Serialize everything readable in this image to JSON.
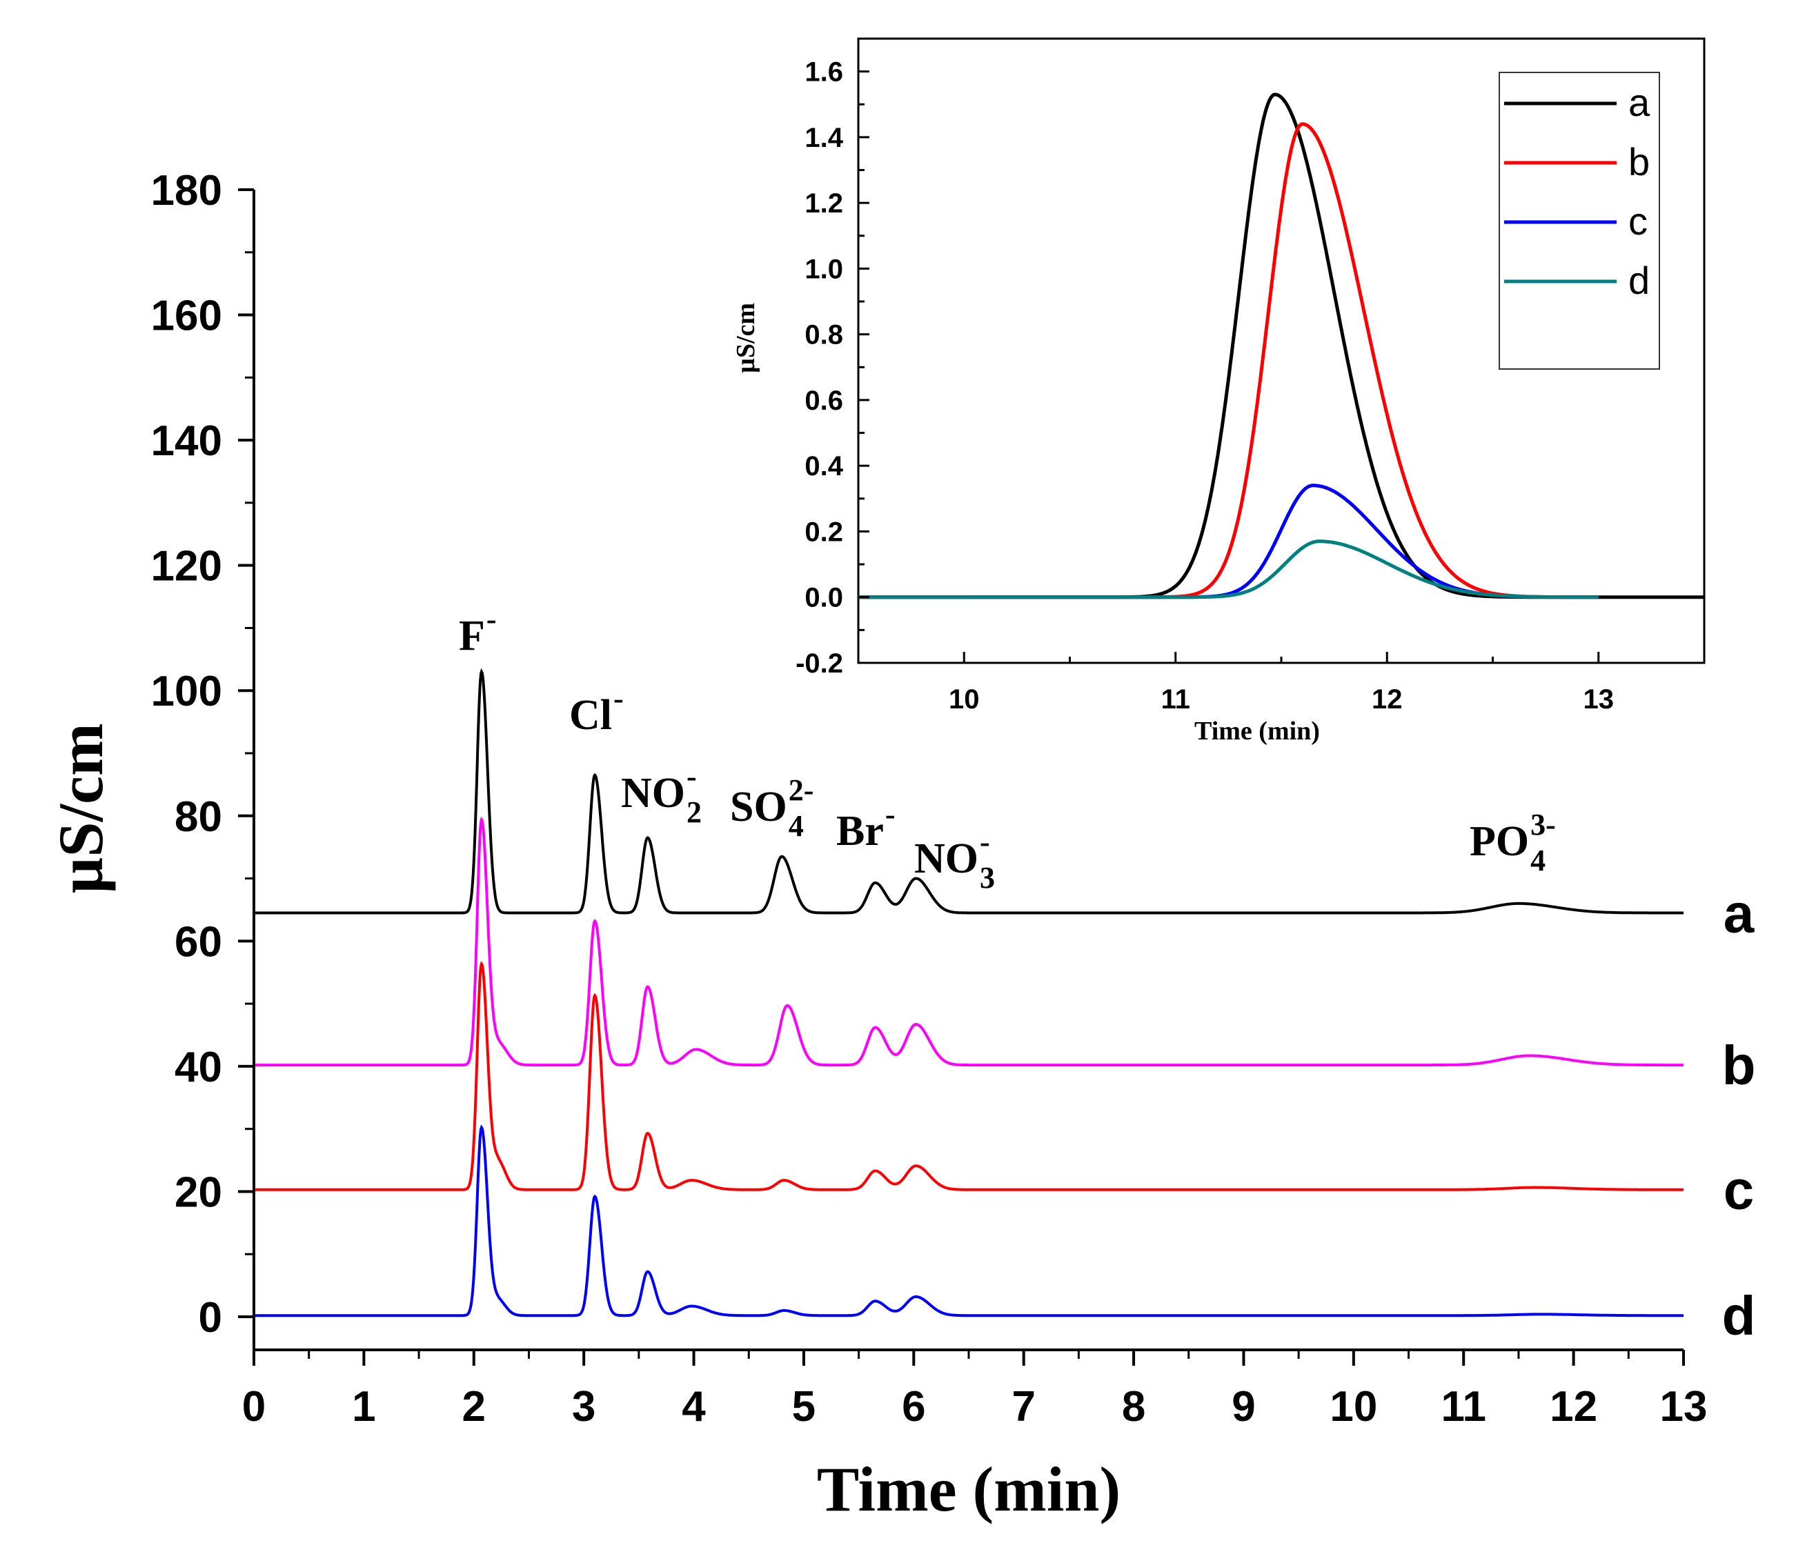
{
  "chart_data": [
    {
      "type": "line",
      "title": "",
      "xlabel": "Time (min)",
      "ylabel": "µS/cm",
      "xlim": [
        0,
        13
      ],
      "ylim": [
        -5,
        185
      ],
      "x_ticks": [
        "0",
        "1",
        "2",
        "3",
        "4",
        "5",
        "6",
        "7",
        "8",
        "9",
        "10",
        "11",
        "12",
        "13"
      ],
      "y_ticks": [
        "0",
        "20",
        "40",
        "60",
        "80",
        "100",
        "120",
        "140",
        "160",
        "180"
      ],
      "grid": false,
      "peak_labels": [
        {
          "id": "F",
          "base": "F",
          "sup": "-",
          "sub": "",
          "time": 2.07
        },
        {
          "id": "Cl",
          "base": "Cl",
          "sup": "-",
          "sub": "",
          "time": 3.1
        },
        {
          "id": "NO2",
          "base": "NO",
          "sup": "-",
          "sub": "2",
          "time": 3.58
        },
        {
          "id": "SO4",
          "base": "SO",
          "sup": "2-",
          "sub": "4",
          "time": 4.8
        },
        {
          "id": "Br",
          "base": "Br",
          "sup": "-",
          "sub": "",
          "time": 5.65
        },
        {
          "id": "NO3",
          "base": "NO",
          "sup": "-",
          "sub": "3",
          "time": 6.02
        },
        {
          "id": "PO4",
          "base": "PO",
          "sup": "3-",
          "sub": "4",
          "time": 11.5
        }
      ],
      "series": [
        {
          "name": "a",
          "label": "a",
          "color": "#000000",
          "baseline": 64.5,
          "peaks": [
            {
              "t": 2.07,
              "h": 38.5,
              "w": 0.04
            },
            {
              "t": 3.1,
              "h": 22.0,
              "w": 0.045
            },
            {
              "t": 3.58,
              "h": 12.0,
              "w": 0.05
            },
            {
              "t": 4.8,
              "h": 9.0,
              "w": 0.07
            },
            {
              "t": 5.65,
              "h": 4.8,
              "w": 0.07
            },
            {
              "t": 6.02,
              "h": 5.5,
              "w": 0.09
            },
            {
              "t": 11.5,
              "h": 1.5,
              "w": 0.25
            }
          ]
        },
        {
          "name": "b",
          "label": "b",
          "color": "#ff00ff",
          "baseline": 40.2,
          "peaks": [
            {
              "t": 2.07,
              "h": 39.0,
              "w": 0.04
            },
            {
              "t": 2.22,
              "h": 3.5,
              "w": 0.06
            },
            {
              "t": 3.1,
              "h": 23.0,
              "w": 0.045
            },
            {
              "t": 3.58,
              "h": 12.5,
              "w": 0.05
            },
            {
              "t": 4.02,
              "h": 2.5,
              "w": 0.1
            },
            {
              "t": 4.85,
              "h": 9.5,
              "w": 0.07
            },
            {
              "t": 5.65,
              "h": 6.0,
              "w": 0.07
            },
            {
              "t": 6.02,
              "h": 6.5,
              "w": 0.09
            },
            {
              "t": 11.6,
              "h": 1.5,
              "w": 0.25
            }
          ]
        },
        {
          "name": "c",
          "label": "c",
          "color": "#ff0000",
          "baseline": 20.3,
          "peaks": [
            {
              "t": 2.07,
              "h": 36.0,
              "w": 0.04
            },
            {
              "t": 2.22,
              "h": 4.5,
              "w": 0.05
            },
            {
              "t": 3.1,
              "h": 31.0,
              "w": 0.045
            },
            {
              "t": 3.58,
              "h": 9.0,
              "w": 0.05
            },
            {
              "t": 3.98,
              "h": 1.5,
              "w": 0.1
            },
            {
              "t": 4.82,
              "h": 1.5,
              "w": 0.07
            },
            {
              "t": 5.65,
              "h": 3.0,
              "w": 0.07
            },
            {
              "t": 6.02,
              "h": 3.8,
              "w": 0.09
            },
            {
              "t": 11.65,
              "h": 0.35,
              "w": 0.25
            }
          ]
        },
        {
          "name": "d",
          "label": "d",
          "color": "#0000ff",
          "baseline": 0.2,
          "peaks": [
            {
              "t": 2.07,
              "h": 30.0,
              "w": 0.04
            },
            {
              "t": 2.22,
              "h": 2.5,
              "w": 0.05
            },
            {
              "t": 3.1,
              "h": 19.0,
              "w": 0.045
            },
            {
              "t": 3.58,
              "h": 7.0,
              "w": 0.05
            },
            {
              "t": 3.98,
              "h": 1.5,
              "w": 0.1
            },
            {
              "t": 4.82,
              "h": 0.8,
              "w": 0.07
            },
            {
              "t": 5.65,
              "h": 2.3,
              "w": 0.07
            },
            {
              "t": 6.02,
              "h": 3.0,
              "w": 0.09
            },
            {
              "t": 11.7,
              "h": 0.2,
              "w": 0.25
            }
          ]
        }
      ]
    },
    {
      "type": "line",
      "title": "",
      "xlabel": "Time (min)",
      "ylabel": "µS/cm",
      "xlim": [
        9.5,
        13.5
      ],
      "ylim": [
        -0.2,
        1.7
      ],
      "x_ticks": [
        "10",
        "11",
        "12",
        "13"
      ],
      "y_ticks": [
        "-0.2",
        "0.0",
        "0.2",
        "0.4",
        "0.6",
        "0.8",
        "1.0",
        "1.2",
        "1.4",
        "1.6"
      ],
      "legend": {
        "position": "top-right",
        "entries": [
          "a",
          "b",
          "c",
          "d"
        ]
      },
      "series": [
        {
          "name": "a",
          "color": "#000000",
          "x_start": 9.5,
          "x_end": 13.5,
          "peak_t": 11.47,
          "peak_h": 1.53,
          "left_w": 0.17,
          "right_w": 0.28
        },
        {
          "name": "b",
          "color": "#ff0000",
          "x_start": 10.05,
          "x_end": 13.0,
          "peak_t": 11.6,
          "peak_h": 1.44,
          "left_w": 0.16,
          "right_w": 0.29
        },
        {
          "name": "c",
          "color": "#0000ff",
          "x_start": 9.5,
          "x_end": 13.0,
          "peak_t": 11.65,
          "peak_h": 0.34,
          "left_w": 0.15,
          "right_w": 0.3
        },
        {
          "name": "d",
          "color": "#008080",
          "x_start": 9.5,
          "x_end": 13.0,
          "peak_t": 11.68,
          "peak_h": 0.17,
          "left_w": 0.16,
          "right_w": 0.32
        }
      ]
    }
  ]
}
